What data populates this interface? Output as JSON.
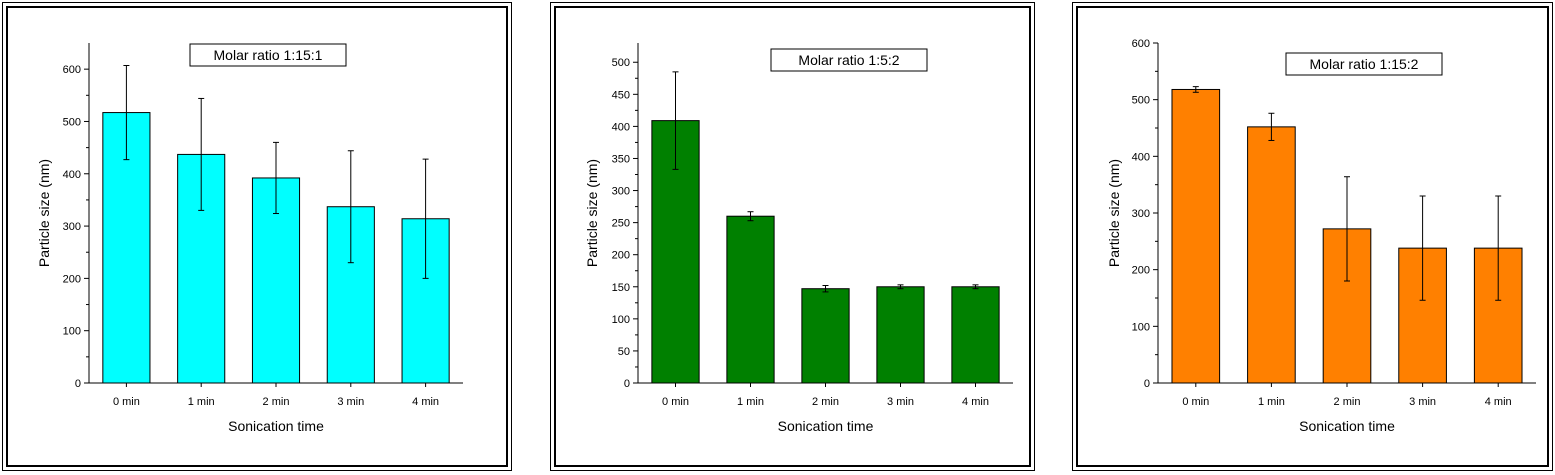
{
  "chart_data": [
    {
      "type": "bar",
      "title": "Molar ratio 1:15:1",
      "xlabel": "Sonication time",
      "ylabel": "Particle size (nm)",
      "categories": [
        "0 min",
        "1 min",
        "2 min",
        "3 min",
        "4 min"
      ],
      "values": [
        517,
        437,
        392,
        337,
        314
      ],
      "errors": [
        90,
        107,
        68,
        107,
        114
      ],
      "ylim": [
        0,
        650
      ],
      "yticks": [
        0,
        100,
        200,
        300,
        400,
        500,
        600
      ],
      "ytick_labels": [
        "0",
        "100",
        "200",
        "300",
        "400",
        "500",
        "600"
      ],
      "bar_color": "#00ffff",
      "grid": false
    },
    {
      "type": "bar",
      "title": "Molar ratio 1:5:2",
      "xlabel": "Sonication time",
      "ylabel": "Particle size (nm)",
      "categories": [
        "0 min",
        "1 min",
        "2 min",
        "3 min",
        "4 min"
      ],
      "values": [
        409,
        260,
        147,
        150,
        150
      ],
      "errors": [
        76,
        7,
        5,
        3,
        3
      ],
      "ylim": [
        0,
        530
      ],
      "yticks": [
        0,
        50,
        100,
        150,
        200,
        250,
        300,
        350,
        400,
        450,
        500
      ],
      "ytick_labels": [
        "0",
        "50",
        "100",
        "150",
        "200",
        "250",
        "300",
        "350",
        "400",
        "450",
        "500"
      ],
      "bar_color": "#008000",
      "grid": false
    },
    {
      "type": "bar",
      "title": "Molar ratio 1:15:2",
      "xlabel": "Sonication time",
      "ylabel": "Particle size (nm)",
      "categories": [
        "0 min",
        "1 min",
        "2 min",
        "3 min",
        "4 min"
      ],
      "values": [
        518,
        452,
        272,
        238,
        238
      ],
      "errors": [
        5,
        24,
        92,
        92,
        92
      ],
      "ylim": [
        0,
        600
      ],
      "yticks": [
        0,
        100,
        200,
        300,
        400,
        500,
        600
      ],
      "ytick_labels": [
        "0",
        "100",
        "200",
        "300",
        "400",
        "500",
        "600"
      ],
      "bar_color": "#ff8000",
      "grid": false
    }
  ]
}
